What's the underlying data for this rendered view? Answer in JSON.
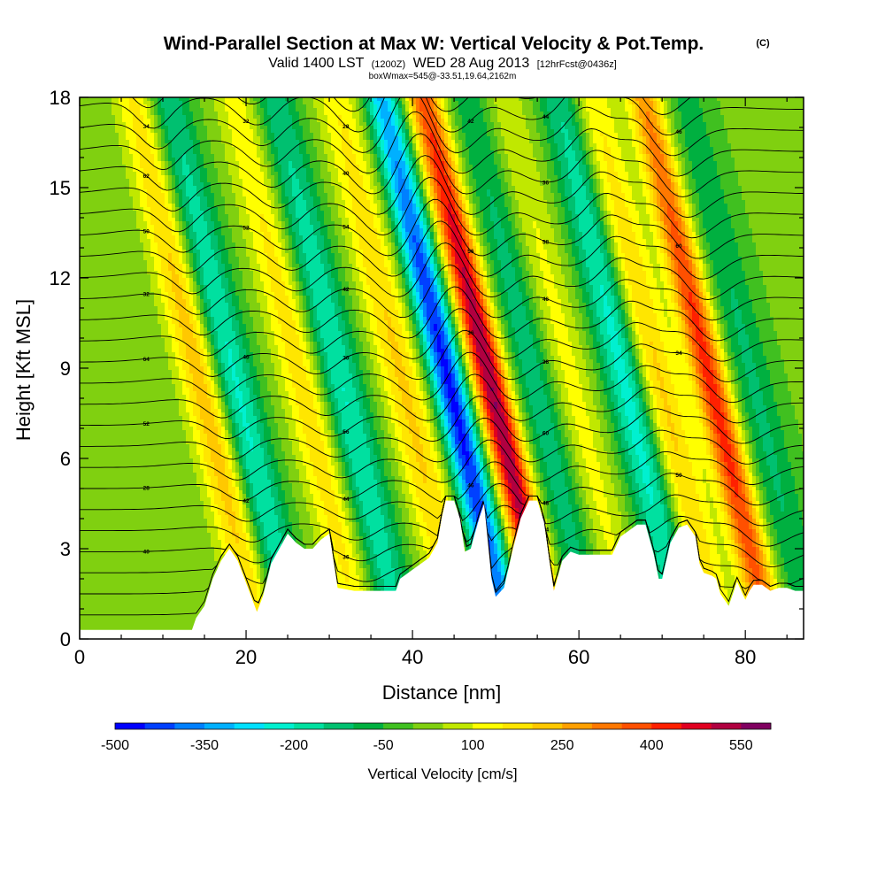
{
  "chart_data": {
    "type": "heatmap",
    "title": "Wind-Parallel Section at Max W: Vertical Velocity & Pot.Temp.",
    "title_suffix": "(C)",
    "subtitle": {
      "prefix": "Valid 1400 LST",
      "utc": "(1200Z)",
      "date": "WED 28 Aug 2013",
      "forecast": "[12hrFcst@0436z]"
    },
    "annotation": "boxWmax=545@-33.51,19.64,2162m",
    "xlabel": "Distance [nm]",
    "ylabel": "Height [Kft MSL]",
    "xlim": [
      0,
      87
    ],
    "ylim": [
      0,
      18
    ],
    "xticks": [
      0,
      20,
      40,
      60,
      80
    ],
    "yticks": [
      0,
      3,
      6,
      9,
      12,
      15,
      18
    ],
    "colorbar": {
      "label": "Vertical Velocity [cm/s]",
      "tick_labels": [
        -500,
        -350,
        -200,
        -50,
        100,
        250,
        400,
        550
      ],
      "levels": [
        -500,
        -450,
        -400,
        -350,
        -300,
        -250,
        -200,
        -150,
        -100,
        -50,
        0,
        50,
        100,
        150,
        200,
        250,
        300,
        350,
        400,
        450,
        500,
        550
      ],
      "colors": [
        "#0000ff",
        "#0040ff",
        "#0080ff",
        "#00b0ff",
        "#00e0ff",
        "#00f0d0",
        "#00e0a0",
        "#00c070",
        "#00b040",
        "#40c020",
        "#80d010",
        "#c0e800",
        "#ffff00",
        "#ffe600",
        "#ffc800",
        "#ffa000",
        "#ff7800",
        "#ff5000",
        "#ff2000",
        "#e00020",
        "#b00040",
        "#800060"
      ]
    },
    "updrafts": [
      {
        "x": 17,
        "peak": 250
      },
      {
        "x": 29,
        "peak": 180
      },
      {
        "x": 41,
        "peak": 200
      },
      {
        "x": 51.5,
        "peak": 545
      },
      {
        "x": 61,
        "peak": 120
      },
      {
        "x": 71.5,
        "peak": 230
      },
      {
        "x": 78,
        "peak": 420
      }
    ],
    "downdrafts": [
      {
        "x": 20.5,
        "peak": -250
      },
      {
        "x": 33.5,
        "peak": -220
      },
      {
        "x": 46.5,
        "peak": -480
      },
      {
        "x": 57,
        "peak": -150
      },
      {
        "x": 68,
        "peak": -260
      },
      {
        "x": 83,
        "peak": -120
      }
    ],
    "terrain": [
      [
        0,
        0.3
      ],
      [
        3,
        0.3
      ],
      [
        6,
        0.3
      ],
      [
        9,
        0.3
      ],
      [
        13.5,
        0.3
      ],
      [
        14,
        0.7
      ],
      [
        15,
        1.1
      ],
      [
        16,
        2.0
      ],
      [
        17,
        2.6
      ],
      [
        18,
        3.0
      ],
      [
        19,
        2.6
      ],
      [
        20.5,
        1.5
      ],
      [
        21.3,
        0.9
      ],
      [
        22,
        1.4
      ],
      [
        23,
        2.5
      ],
      [
        24,
        3.0
      ],
      [
        25,
        3.5
      ],
      [
        26,
        3.2
      ],
      [
        27,
        3.0
      ],
      [
        28,
        3.0
      ],
      [
        29,
        3.3
      ],
      [
        30,
        3.5
      ],
      [
        30.5,
        2.6
      ],
      [
        31,
        1.7
      ],
      [
        33,
        1.6
      ],
      [
        36,
        1.6
      ],
      [
        38,
        1.6
      ],
      [
        38.5,
        2.0
      ],
      [
        40,
        2.3
      ],
      [
        41,
        2.5
      ],
      [
        42,
        2.7
      ],
      [
        43,
        3.2
      ],
      [
        43.5,
        4.0
      ],
      [
        44,
        4.6
      ],
      [
        45,
        4.6
      ],
      [
        45.7,
        4.0
      ],
      [
        46.3,
        2.9
      ],
      [
        47,
        3.0
      ],
      [
        48,
        4.0
      ],
      [
        48.6,
        4.5
      ],
      [
        49.5,
        2.0
      ],
      [
        50,
        1.4
      ],
      [
        51,
        1.7
      ],
      [
        52,
        2.9
      ],
      [
        53,
        4.0
      ],
      [
        54,
        4.6
      ],
      [
        55,
        4.6
      ],
      [
        55.8,
        3.9
      ],
      [
        56.5,
        2.5
      ],
      [
        57,
        1.6
      ],
      [
        58,
        2.6
      ],
      [
        59,
        2.9
      ],
      [
        60,
        2.8
      ],
      [
        61,
        2.8
      ],
      [
        62,
        2.8
      ],
      [
        63,
        2.8
      ],
      [
        64,
        2.8
      ],
      [
        65,
        3.4
      ],
      [
        66,
        3.6
      ],
      [
        67,
        3.8
      ],
      [
        68,
        3.8
      ],
      [
        69,
        2.8
      ],
      [
        69.6,
        2.0
      ],
      [
        70,
        2.0
      ],
      [
        71,
        3.2
      ],
      [
        72,
        3.7
      ],
      [
        73,
        3.8
      ],
      [
        74,
        3.4
      ],
      [
        74.5,
        2.5
      ],
      [
        75,
        2.2
      ],
      [
        76,
        2.1
      ],
      [
        76.5,
        2.0
      ],
      [
        77,
        1.5
      ],
      [
        78,
        1.1
      ],
      [
        79,
        1.9
      ],
      [
        80,
        1.3
      ],
      [
        80.5,
        1.6
      ],
      [
        81,
        1.8
      ],
      [
        82,
        1.8
      ],
      [
        83,
        1.6
      ],
      [
        84,
        1.7
      ],
      [
        85,
        1.7
      ],
      [
        86,
        1.6
      ],
      [
        87,
        1.6
      ]
    ],
    "theta_contour_labels": [
      "40",
      "30",
      "36",
      "38",
      "34",
      "32",
      "28",
      "42",
      "44",
      "46",
      "48",
      "50",
      "52",
      "54",
      "56",
      "58",
      "60",
      "62",
      "64"
    ]
  }
}
